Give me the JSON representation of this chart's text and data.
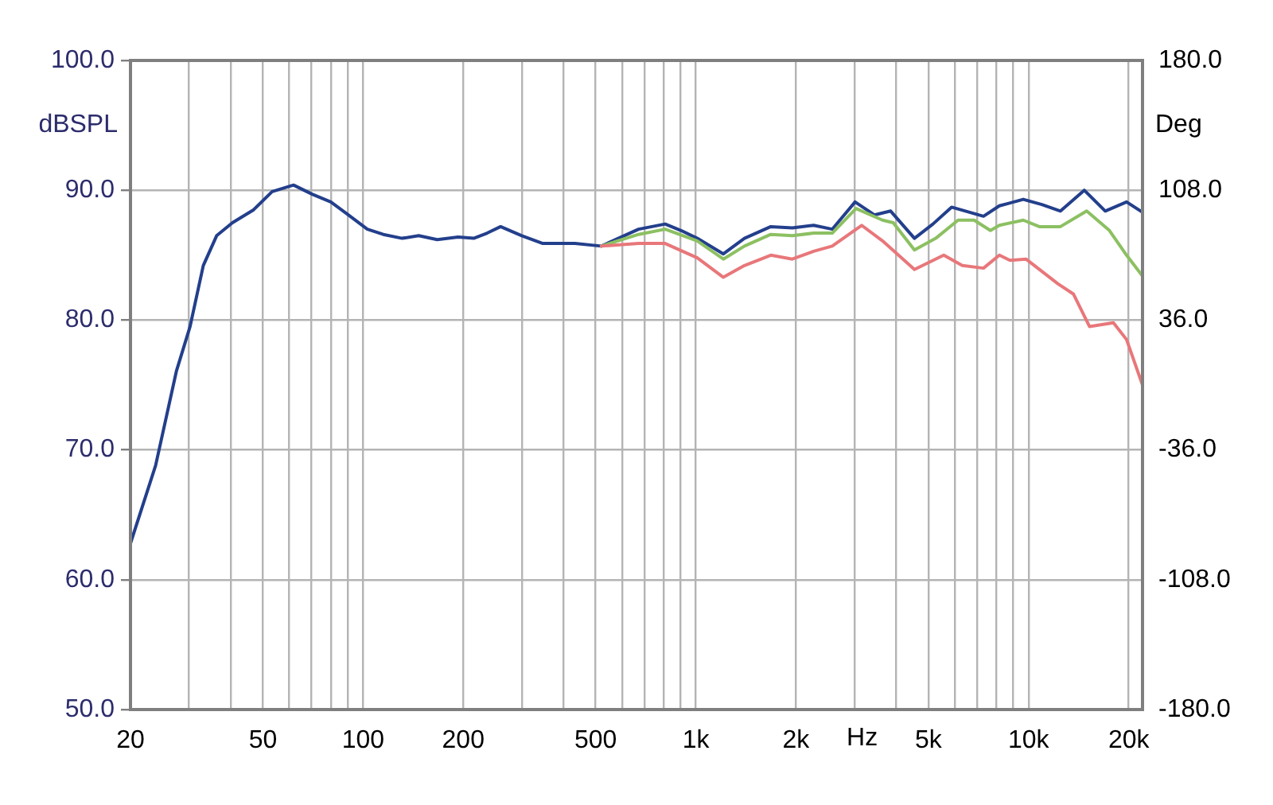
{
  "chart_data": {
    "type": "line",
    "xlabel": "Hz",
    "ylabel": "dBSPL",
    "y2label": "Deg",
    "log": "x",
    "grid": true,
    "legend": false,
    "marker": "none",
    "line_style": "solid",
    "xlim": [
      20,
      22000
    ],
    "ylim": [
      50,
      100
    ],
    "y2lim": [
      -180,
      180
    ],
    "xticks": [
      20,
      {
        "value": 30,
        "label": null
      },
      {
        "value": 40,
        "label": null
      },
      50,
      {
        "value": 60,
        "label": null
      },
      {
        "value": 70,
        "label": null
      },
      {
        "value": 80,
        "label": null
      },
      {
        "value": 90,
        "label": null
      },
      100,
      200,
      {
        "value": 300,
        "label": null
      },
      {
        "value": 400,
        "label": null
      },
      500,
      {
        "value": 600,
        "label": null
      },
      {
        "value": 700,
        "label": null
      },
      {
        "value": 800,
        "label": null
      },
      {
        "value": 900,
        "label": null
      },
      {
        "value": 1000,
        "label": "1k"
      },
      {
        "value": 2000,
        "label": "2k"
      },
      {
        "value": 3000,
        "label": null
      },
      {
        "value": 4000,
        "label": null
      },
      {
        "value": 5000,
        "label": "5k"
      },
      {
        "value": 6000,
        "label": null
      },
      {
        "value": 7000,
        "label": null
      },
      {
        "value": 8000,
        "label": null
      },
      {
        "value": 9000,
        "label": null
      },
      {
        "value": 10000,
        "label": "10k"
      },
      {
        "value": 20000,
        "label": "20k"
      }
    ],
    "yticks": [
      {
        "value": 50,
        "label": "50.0"
      },
      {
        "value": 60,
        "label": "60.0"
      },
      {
        "value": 70,
        "label": "70.0"
      },
      {
        "value": 80,
        "label": "80.0"
      },
      {
        "value": 90,
        "label": "90.0"
      },
      {
        "value": 100,
        "label": "100.0"
      }
    ],
    "y2ticks": [
      {
        "value": -180,
        "label": "-180.0"
      },
      {
        "value": -108,
        "label": "-108.0"
      },
      {
        "value": -36,
        "label": "-36.0"
      },
      {
        "value": 36,
        "label": "36.0"
      },
      {
        "value": 108,
        "label": "108.0"
      },
      {
        "value": 180,
        "label": "180.0"
      }
    ],
    "series": [
      {
        "color": "#e8777a",
        "x": [
          520,
          673,
          809,
          1010,
          1210,
          1400,
          1680,
          1950,
          2260,
          2570,
          3150,
          3640,
          4540,
          5560,
          6320,
          7320,
          8170,
          8790,
          9820,
          12240,
          13650,
          15250,
          17990,
          19700,
          22000
        ],
        "values": [
          85.7,
          85.9,
          85.9,
          84.8,
          83.3,
          84.2,
          85.0,
          84.7,
          85.3,
          85.7,
          87.3,
          86.1,
          83.9,
          85.0,
          84.2,
          84.0,
          85.0,
          84.6,
          84.7,
          82.8,
          82.0,
          79.5,
          79.8,
          78.5,
          75.0
        ]
      },
      {
        "color": "#8cc062",
        "x": [
          520,
          673,
          809,
          1010,
          1210,
          1400,
          1680,
          1950,
          2260,
          2570,
          3030,
          3640,
          3920,
          4540,
          5260,
          6140,
          6860,
          7680,
          8170,
          9640,
          10770,
          12470,
          14950,
          17500,
          19700,
          22000
        ],
        "values": [
          85.7,
          86.6,
          87.0,
          86.1,
          84.7,
          85.7,
          86.6,
          86.5,
          86.7,
          86.7,
          88.6,
          87.7,
          87.5,
          85.4,
          86.3,
          87.7,
          87.7,
          86.9,
          87.3,
          87.7,
          87.2,
          87.2,
          88.4,
          86.9,
          85.0,
          83.4
        ]
      },
      {
        "color": "#233f8c",
        "x": [
          20,
          23.8,
          27.5,
          30.2,
          33.1,
          36.3,
          40.5,
          46.9,
          53.3,
          61.8,
          70.3,
          80,
          89.3,
          103,
          115,
          131,
          147,
          167,
          193,
          215,
          236,
          259,
          300,
          347,
          433,
          520,
          673,
          809,
          903,
          1010,
          1210,
          1400,
          1680,
          1950,
          2260,
          2570,
          3010,
          3440,
          3850,
          4540,
          5160,
          5870,
          7320,
          8170,
          9640,
          10960,
          12470,
          14700,
          17000,
          19700,
          22000
        ],
        "values": [
          62.8,
          68.8,
          76.1,
          79.5,
          84.2,
          86.5,
          87.5,
          88.5,
          89.9,
          90.4,
          89.7,
          89.1,
          88.2,
          87.0,
          86.6,
          86.3,
          86.5,
          86.2,
          86.4,
          86.3,
          86.7,
          87.2,
          86.5,
          85.9,
          85.9,
          85.7,
          87.0,
          87.4,
          86.9,
          86.3,
          85.1,
          86.3,
          87.2,
          87.1,
          87.3,
          87.0,
          89.1,
          88.1,
          88.4,
          86.3,
          87.4,
          88.7,
          88.0,
          88.8,
          89.3,
          88.9,
          88.4,
          90.0,
          88.4,
          89.1,
          88.3
        ]
      }
    ]
  }
}
